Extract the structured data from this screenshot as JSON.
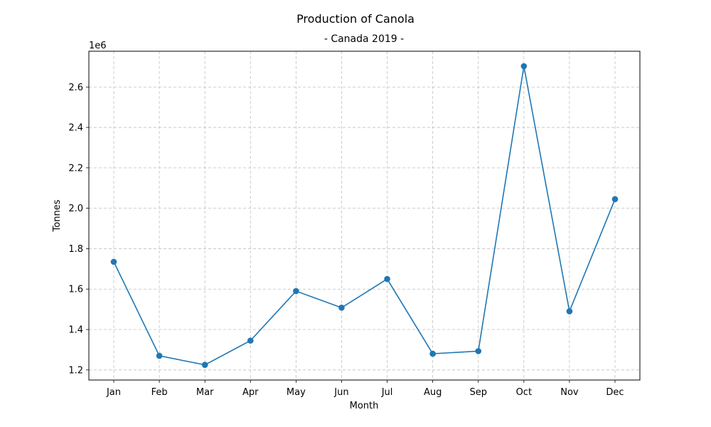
{
  "chart_data": {
    "type": "line",
    "title": "Production of Canola",
    "subtitle": "- Canada 2019 -",
    "xlabel": "Month",
    "ylabel": "Tonnes",
    "y_offset_label": "1e6",
    "categories": [
      "Jan",
      "Feb",
      "Mar",
      "Apr",
      "May",
      "Jun",
      "Jul",
      "Aug",
      "Sep",
      "Oct",
      "Nov",
      "Dec"
    ],
    "series": [
      {
        "values": [
          1735000,
          1270000,
          1225000,
          1345000,
          1590000,
          1508000,
          1650000,
          1280000,
          1293000,
          2703000,
          1490000,
          2045000
        ]
      }
    ],
    "yticks": [
      1.2,
      1.4,
      1.6,
      1.8,
      2.0,
      2.2,
      2.4,
      2.6
    ],
    "yscale_factor": 1000000,
    "ylim": [
      1150000,
      2777000
    ],
    "grid": true,
    "colors": {
      "line": "#1f77b4",
      "marker": "#1f77b4"
    },
    "marker": "circle"
  }
}
